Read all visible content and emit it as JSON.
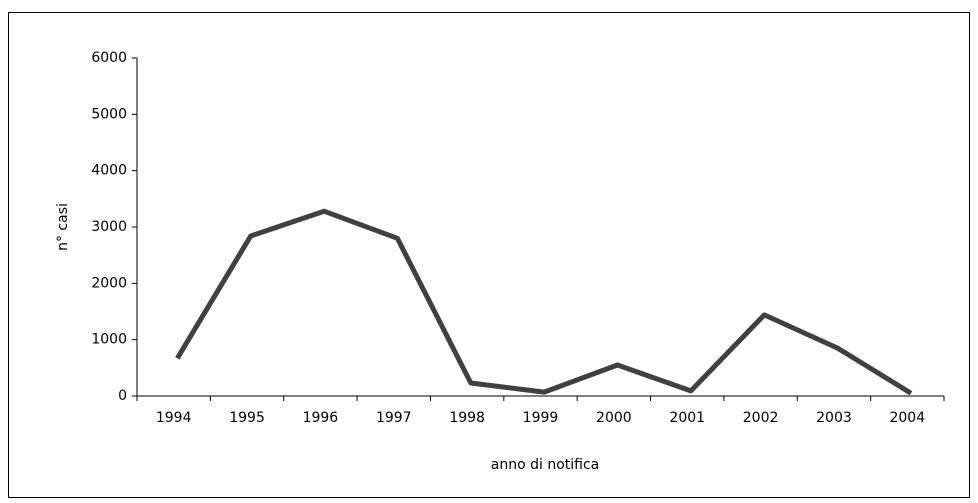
{
  "chart_data": {
    "type": "line",
    "x_label": "anno di notifica",
    "y_label": "n° casi",
    "categories": [
      "1994",
      "1995",
      "1996",
      "1997",
      "1998",
      "1999",
      "2000",
      "2001",
      "2002",
      "2003",
      "2004"
    ],
    "series": [
      {
        "name": "n° casi",
        "color": "#404040",
        "values": [
          670,
          2840,
          3280,
          2800,
          230,
          70,
          550,
          90,
          1440,
          850,
          50
        ]
      }
    ],
    "ylim": [
      0,
      6000
    ],
    "yticks": [
      0,
      1000,
      2000,
      3000,
      4000,
      5000,
      6000
    ],
    "grid": false,
    "legend": false
  }
}
